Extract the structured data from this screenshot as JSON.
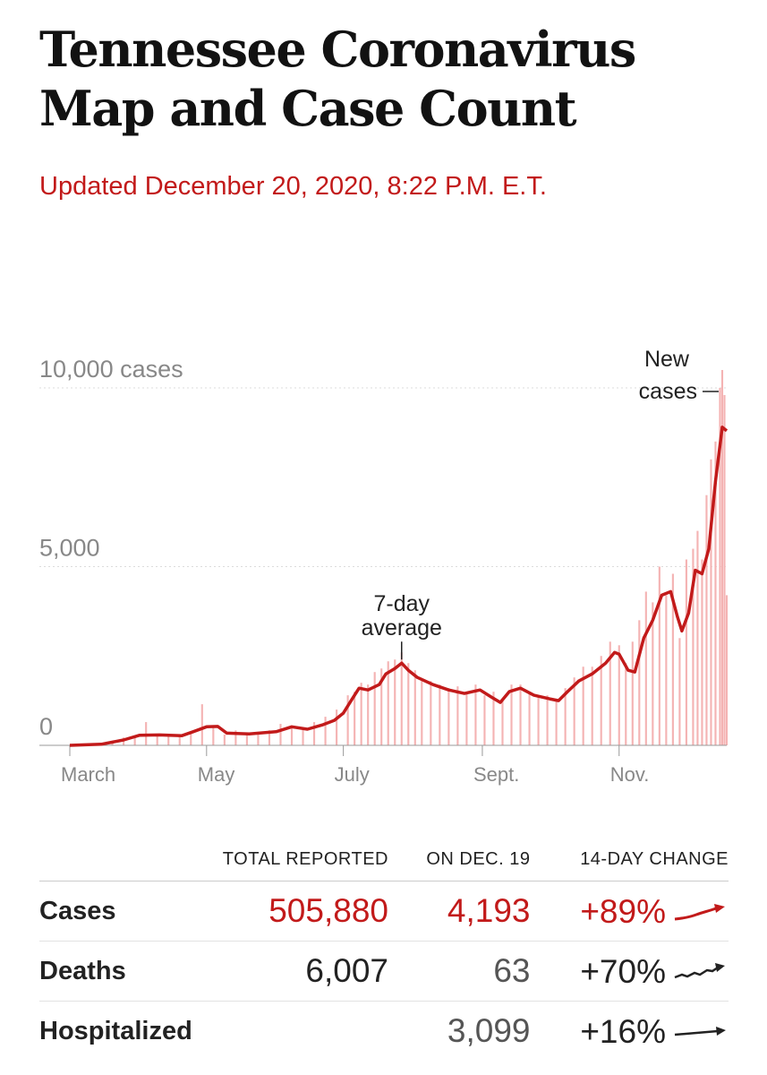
{
  "header": {
    "title": "Tennessee Coronavirus Map and Case Count",
    "updated": "Updated December 20, 2020, 8:22 P.M. E.T."
  },
  "colors": {
    "accent": "#c21a1a",
    "bar": "#f4b3b3",
    "text": "#121212",
    "muted": "#888888"
  },
  "chart_data": {
    "type": "bar",
    "overlay": "line",
    "x_axis": {
      "start": "2020-03-01",
      "end": "2020-12-19",
      "ticks": [
        {
          "date": "2020-03-01",
          "label": "March"
        },
        {
          "date": "2020-05-01",
          "label": "May"
        },
        {
          "date": "2020-07-01",
          "label": "July"
        },
        {
          "date": "2020-09-01",
          "label": "Sept."
        },
        {
          "date": "2020-11-01",
          "label": "Nov."
        }
      ]
    },
    "y_axis": {
      "ylim": [
        0,
        10000
      ],
      "ticks": [
        {
          "value": 0,
          "label": "0"
        },
        {
          "value": 5000,
          "label": "5,000"
        },
        {
          "value": 10000,
          "label": "10,000 cases"
        }
      ],
      "gridlines": true
    },
    "annotations": {
      "average": {
        "line1": "7-day",
        "line2": "average",
        "date": "2020-07-27",
        "value": 2350
      },
      "new_cases": {
        "line1": "New",
        "line2": "cases",
        "date": "2020-12-17",
        "value": 9800
      }
    },
    "series": [
      {
        "name": "7-day average",
        "kind": "line",
        "color": "#c21a1a",
        "points": [
          [
            "2020-03-01",
            0
          ],
          [
            "2020-03-15",
            30
          ],
          [
            "2020-03-25",
            150
          ],
          [
            "2020-04-01",
            280
          ],
          [
            "2020-04-10",
            290
          ],
          [
            "2020-04-20",
            270
          ],
          [
            "2020-04-25",
            380
          ],
          [
            "2020-05-01",
            520
          ],
          [
            "2020-05-06",
            530
          ],
          [
            "2020-05-10",
            340
          ],
          [
            "2020-05-20",
            320
          ],
          [
            "2020-06-01",
            380
          ],
          [
            "2020-06-08",
            520
          ],
          [
            "2020-06-15",
            450
          ],
          [
            "2020-06-22",
            580
          ],
          [
            "2020-06-27",
            700
          ],
          [
            "2020-07-01",
            900
          ],
          [
            "2020-07-05",
            1300
          ],
          [
            "2020-07-08",
            1600
          ],
          [
            "2020-07-12",
            1550
          ],
          [
            "2020-07-17",
            1700
          ],
          [
            "2020-07-20",
            2000
          ],
          [
            "2020-07-24",
            2150
          ],
          [
            "2020-07-27",
            2300
          ],
          [
            "2020-07-30",
            2100
          ],
          [
            "2020-08-03",
            1900
          ],
          [
            "2020-08-10",
            1700
          ],
          [
            "2020-08-17",
            1550
          ],
          [
            "2020-08-24",
            1450
          ],
          [
            "2020-08-31",
            1550
          ],
          [
            "2020-09-05",
            1350
          ],
          [
            "2020-09-09",
            1200
          ],
          [
            "2020-09-13",
            1500
          ],
          [
            "2020-09-18",
            1600
          ],
          [
            "2020-09-24",
            1400
          ],
          [
            "2020-10-01",
            1300
          ],
          [
            "2020-10-05",
            1250
          ],
          [
            "2020-10-09",
            1500
          ],
          [
            "2020-10-14",
            1800
          ],
          [
            "2020-10-20",
            2000
          ],
          [
            "2020-10-26",
            2300
          ],
          [
            "2020-10-30",
            2600
          ],
          [
            "2020-11-01",
            2550
          ],
          [
            "2020-11-05",
            2100
          ],
          [
            "2020-11-08",
            2050
          ],
          [
            "2020-11-12",
            3000
          ],
          [
            "2020-11-16",
            3500
          ],
          [
            "2020-11-20",
            4200
          ],
          [
            "2020-11-24",
            4300
          ],
          [
            "2020-11-27",
            3600
          ],
          [
            "2020-11-29",
            3200
          ],
          [
            "2020-12-02",
            3700
          ],
          [
            "2020-12-05",
            4900
          ],
          [
            "2020-12-08",
            4800
          ],
          [
            "2020-12-11",
            5500
          ],
          [
            "2020-12-14",
            7400
          ],
          [
            "2020-12-17",
            8900
          ],
          [
            "2020-12-19",
            8800
          ]
        ]
      },
      {
        "name": "New cases",
        "kind": "bar",
        "color": "#f4b3b3",
        "points": [
          [
            "2020-03-05",
            10
          ],
          [
            "2020-03-10",
            20
          ],
          [
            "2020-03-15",
            40
          ],
          [
            "2020-03-20",
            120
          ],
          [
            "2020-03-25",
            220
          ],
          [
            "2020-03-30",
            250
          ],
          [
            "2020-04-04",
            650
          ],
          [
            "2020-04-09",
            300
          ],
          [
            "2020-04-14",
            280
          ],
          [
            "2020-04-19",
            250
          ],
          [
            "2020-04-24",
            350
          ],
          [
            "2020-04-29",
            1150
          ],
          [
            "2020-05-04",
            500
          ],
          [
            "2020-05-09",
            300
          ],
          [
            "2020-05-14",
            420
          ],
          [
            "2020-05-19",
            300
          ],
          [
            "2020-05-24",
            350
          ],
          [
            "2020-05-29",
            420
          ],
          [
            "2020-06-03",
            600
          ],
          [
            "2020-06-08",
            550
          ],
          [
            "2020-06-13",
            480
          ],
          [
            "2020-06-18",
            650
          ],
          [
            "2020-06-23",
            800
          ],
          [
            "2020-06-28",
            1000
          ],
          [
            "2020-07-03",
            1400
          ],
          [
            "2020-07-06",
            1500
          ],
          [
            "2020-07-09",
            1750
          ],
          [
            "2020-07-12",
            1700
          ],
          [
            "2020-07-15",
            2050
          ],
          [
            "2020-07-18",
            2150
          ],
          [
            "2020-07-21",
            2350
          ],
          [
            "2020-07-24",
            2400
          ],
          [
            "2020-07-27",
            2600
          ],
          [
            "2020-07-30",
            2300
          ],
          [
            "2020-08-02",
            2100
          ],
          [
            "2020-08-05",
            1800
          ],
          [
            "2020-08-09",
            1800
          ],
          [
            "2020-08-13",
            1700
          ],
          [
            "2020-08-17",
            1600
          ],
          [
            "2020-08-21",
            1650
          ],
          [
            "2020-08-25",
            1500
          ],
          [
            "2020-08-29",
            1700
          ],
          [
            "2020-09-02",
            1400
          ],
          [
            "2020-09-06",
            1500
          ],
          [
            "2020-09-10",
            1300
          ],
          [
            "2020-09-14",
            1700
          ],
          [
            "2020-09-18",
            1700
          ],
          [
            "2020-09-22",
            1500
          ],
          [
            "2020-09-26",
            1400
          ],
          [
            "2020-09-30",
            1400
          ],
          [
            "2020-10-04",
            1300
          ],
          [
            "2020-10-08",
            1600
          ],
          [
            "2020-10-12",
            1900
          ],
          [
            "2020-10-16",
            2200
          ],
          [
            "2020-10-20",
            2200
          ],
          [
            "2020-10-24",
            2500
          ],
          [
            "2020-10-28",
            2900
          ],
          [
            "2020-11-01",
            2800
          ],
          [
            "2020-11-04",
            2300
          ],
          [
            "2020-11-07",
            2900
          ],
          [
            "2020-11-10",
            3500
          ],
          [
            "2020-11-13",
            4300
          ],
          [
            "2020-11-16",
            4000
          ],
          [
            "2020-11-19",
            5000
          ],
          [
            "2020-11-22",
            4200
          ],
          [
            "2020-11-25",
            4800
          ],
          [
            "2020-11-28",
            3000
          ],
          [
            "2020-12-01",
            5200
          ],
          [
            "2020-12-04",
            5500
          ],
          [
            "2020-12-06",
            6000
          ],
          [
            "2020-12-08",
            5200
          ],
          [
            "2020-12-10",
            7000
          ],
          [
            "2020-12-12",
            8000
          ],
          [
            "2020-12-14",
            8500
          ],
          [
            "2020-12-16",
            10000
          ],
          [
            "2020-12-17",
            10500
          ],
          [
            "2020-12-18",
            9800
          ],
          [
            "2020-12-19",
            4200
          ]
        ]
      }
    ]
  },
  "stats": {
    "headers": [
      "",
      "TOTAL REPORTED",
      "ON DEC. 19",
      "14-DAY CHANGE"
    ],
    "rows": [
      {
        "label": "Cases",
        "total": "505,880",
        "day": "4,193",
        "change": "+89%",
        "color": "#c21a1a"
      },
      {
        "label": "Deaths",
        "total": "6,007",
        "day": "63",
        "change": "+70%",
        "color": "#222222"
      },
      {
        "label": "Hospitalized",
        "total": "",
        "day": "3,099",
        "change": "+16%",
        "color": "#222222"
      }
    ]
  }
}
